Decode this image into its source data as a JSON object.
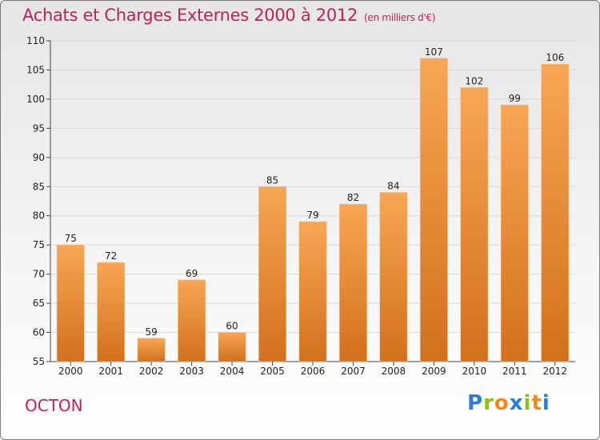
{
  "header": {
    "title": "Achats et Charges Externes 2000 à 2012",
    "subtitle": "(en milliers d'€)"
  },
  "footer": {
    "town": "OCTON",
    "logo": [
      "P",
      "r",
      "o",
      "x",
      "i",
      "t",
      "i"
    ]
  },
  "colors": {
    "bar_top": "#f7a655",
    "bar_bottom": "#d2701c",
    "title": "#c11f5c",
    "grid": "#d9d9d9"
  },
  "chart_data": {
    "type": "bar",
    "categories": [
      "2000",
      "2001",
      "2002",
      "2003",
      "2004",
      "2005",
      "2006",
      "2007",
      "2008",
      "2009",
      "2010",
      "2011",
      "2012"
    ],
    "values": [
      75,
      72,
      59,
      69,
      60,
      85,
      79,
      82,
      84,
      107,
      102,
      99,
      106
    ],
    "title": "Achats et Charges Externes 2000 à 2012",
    "subtitle": "(en milliers d'€)",
    "ylim": [
      55,
      110
    ],
    "yticks": [
      55,
      60,
      65,
      70,
      75,
      80,
      85,
      90,
      95,
      100,
      105,
      110
    ],
    "grid": true,
    "data_labels": true
  }
}
